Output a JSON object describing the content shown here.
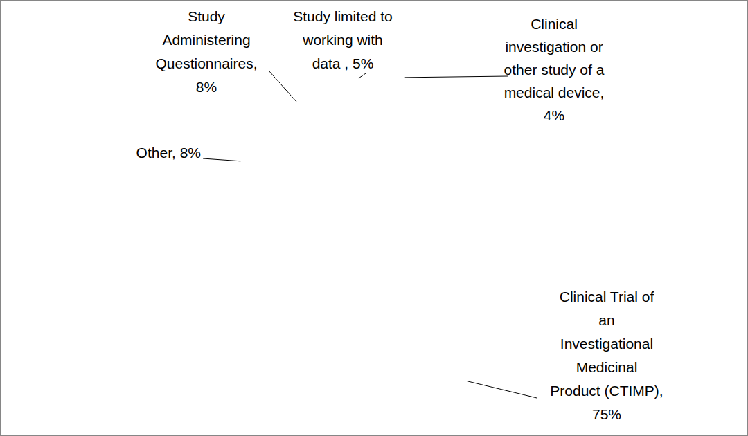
{
  "chart_data": {
    "type": "pie",
    "categories": [
      "Clinical investigation or other study of a medical device,",
      "Clinical Trial of an Investigational Medicinal Product (CTIMP),",
      "Other,",
      "Study Administering Questionnaires,",
      "Study limited to working with data ,"
    ],
    "values": [
      4,
      75,
      8,
      8,
      5
    ],
    "value_labels": [
      "4%",
      "75%",
      "8%",
      "8%",
      "5%"
    ],
    "colors": [
      "#4f81bd",
      "#c0504d",
      "#9bbb59",
      "#8064a2",
      "#4bacc6"
    ],
    "data_labels": true
  }
}
